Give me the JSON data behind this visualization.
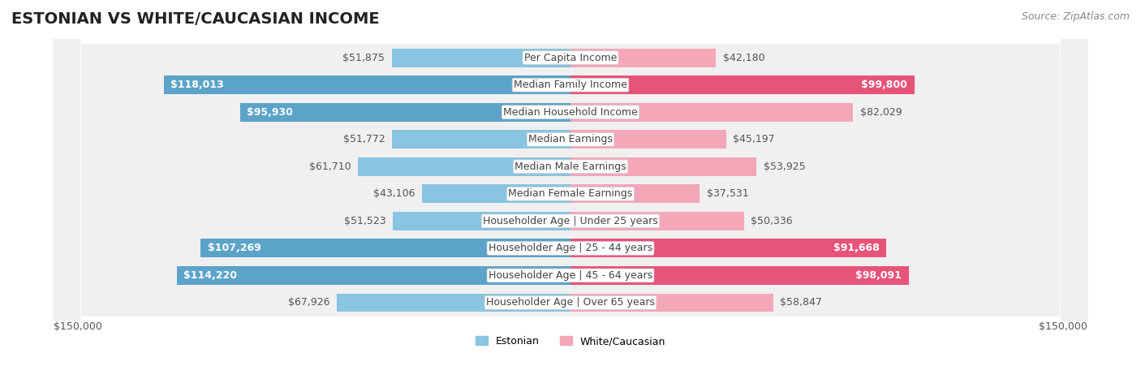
{
  "title": "ESTONIAN VS WHITE/CAUCASIAN INCOME",
  "source": "Source: ZipAtlas.com",
  "categories": [
    "Per Capita Income",
    "Median Family Income",
    "Median Household Income",
    "Median Earnings",
    "Median Male Earnings",
    "Median Female Earnings",
    "Householder Age | Under 25 years",
    "Householder Age | 25 - 44 years",
    "Householder Age | 45 - 64 years",
    "Householder Age | Over 65 years"
  ],
  "estonian_values": [
    51875,
    118013,
    95930,
    51772,
    61710,
    43106,
    51523,
    107269,
    114220,
    67926
  ],
  "white_values": [
    42180,
    99800,
    82029,
    45197,
    53925,
    37531,
    50336,
    91668,
    98091,
    58847
  ],
  "estonian_labels": [
    "$51,875",
    "$118,013",
    "$95,930",
    "$51,772",
    "$61,710",
    "$43,106",
    "$51,523",
    "$107,269",
    "$114,220",
    "$67,926"
  ],
  "white_labels": [
    "$42,180",
    "$99,800",
    "$82,029",
    "$45,197",
    "$53,925",
    "$37,531",
    "$50,336",
    "$91,668",
    "$98,091",
    "$58,847"
  ],
  "estonian_color_normal": "#89c4e1",
  "estonian_color_highlight": "#5ba3c9",
  "white_color_normal": "#f4a7b9",
  "white_color_highlight": "#e8537a",
  "highlight_threshold": 90000,
  "max_value": 150000,
  "xlabel_left": "$150,000",
  "xlabel_right": "$150,000",
  "legend_estonian": "Estonian",
  "legend_white": "White/Caucasian",
  "bg_color": "#ffffff",
  "bar_bg_color": "#efefef",
  "title_fontsize": 14,
  "label_fontsize": 9,
  "source_fontsize": 9
}
